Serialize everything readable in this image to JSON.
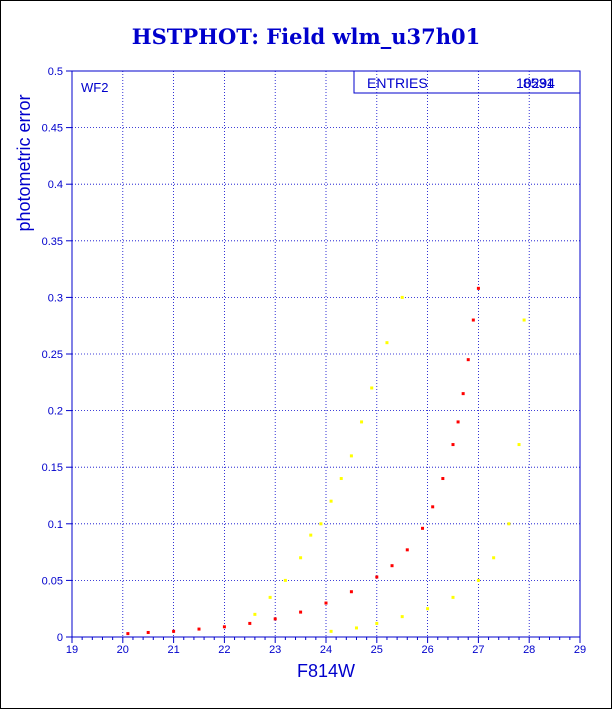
{
  "title": "HSTPHOT: Field wlm_u37h01",
  "stats": {
    "entries_label": "ENTRIES",
    "entries_value": "10294",
    "entries_value_overlap": "8531"
  },
  "panel_label": "WF2",
  "colors": {
    "axis": "#0000cc",
    "main_points": "#ff0000",
    "secondary_points": "#ffff00"
  },
  "chart_data": {
    "type": "scatter",
    "xlabel": "F814W",
    "ylabel": "photometric error",
    "xlim": [
      19,
      29
    ],
    "ylim": [
      0,
      0.5
    ],
    "xticks": [
      "19",
      "20",
      "21",
      "22",
      "23",
      "24",
      "25",
      "26",
      "27",
      "28",
      "29"
    ],
    "yticks": [
      "0",
      "0.05",
      "0.1",
      "0.15",
      "0.2",
      "0.25",
      "0.3",
      "0.35",
      "0.4",
      "0.45",
      "0.5"
    ],
    "grid": true,
    "series": [
      {
        "color": "#ff0000",
        "x": [
          20.1,
          20.5,
          21.0,
          21.5,
          22.0,
          22.5,
          23.0,
          23.5,
          24.0,
          24.5,
          25.0,
          25.3,
          25.6,
          25.9,
          26.1,
          26.3,
          26.5,
          26.6,
          26.7,
          26.8,
          26.9,
          27.0
        ],
        "y": [
          0.003,
          0.004,
          0.005,
          0.007,
          0.009,
          0.012,
          0.016,
          0.022,
          0.03,
          0.04,
          0.053,
          0.063,
          0.077,
          0.096,
          0.115,
          0.14,
          0.17,
          0.19,
          0.215,
          0.245,
          0.28,
          0.308
        ]
      },
      {
        "color": "#ffff00",
        "x": [
          22.6,
          22.9,
          23.2,
          23.5,
          23.7,
          23.9,
          24.1,
          24.3,
          24.5,
          24.7,
          24.9,
          25.2,
          25.5,
          24.1,
          24.6,
          25.0,
          25.5,
          26.0,
          26.5,
          27.0,
          27.3,
          27.6,
          27.8,
          27.9
        ],
        "y": [
          0.02,
          0.035,
          0.05,
          0.07,
          0.09,
          0.1,
          0.12,
          0.14,
          0.16,
          0.19,
          0.22,
          0.26,
          0.3,
          0.005,
          0.008,
          0.012,
          0.018,
          0.025,
          0.035,
          0.05,
          0.07,
          0.1,
          0.17,
          0.28
        ]
      }
    ]
  }
}
